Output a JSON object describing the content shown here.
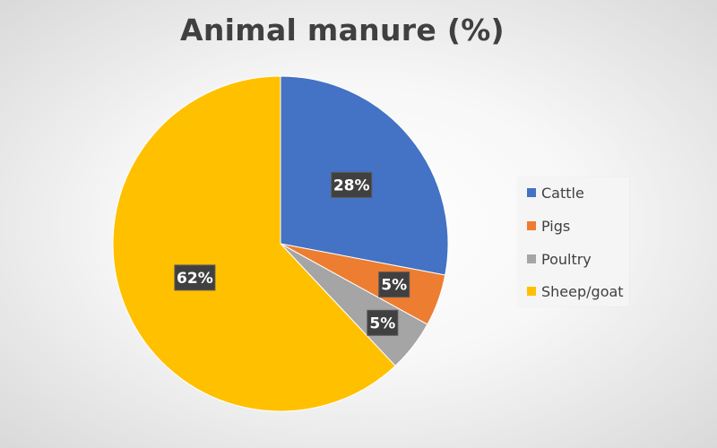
{
  "chart_data": {
    "type": "pie",
    "title": "Animal manure (%)",
    "categories": [
      "Cattle",
      "Pigs",
      "Poultry",
      "Sheep/goat"
    ],
    "values": [
      28,
      5,
      5,
      62
    ],
    "data_labels": [
      "28%",
      "5%",
      "5%",
      "62%"
    ],
    "colors": [
      "#4472C4",
      "#ED7D31",
      "#A5A5A5",
      "#FFC000"
    ],
    "legend_position": "right"
  }
}
